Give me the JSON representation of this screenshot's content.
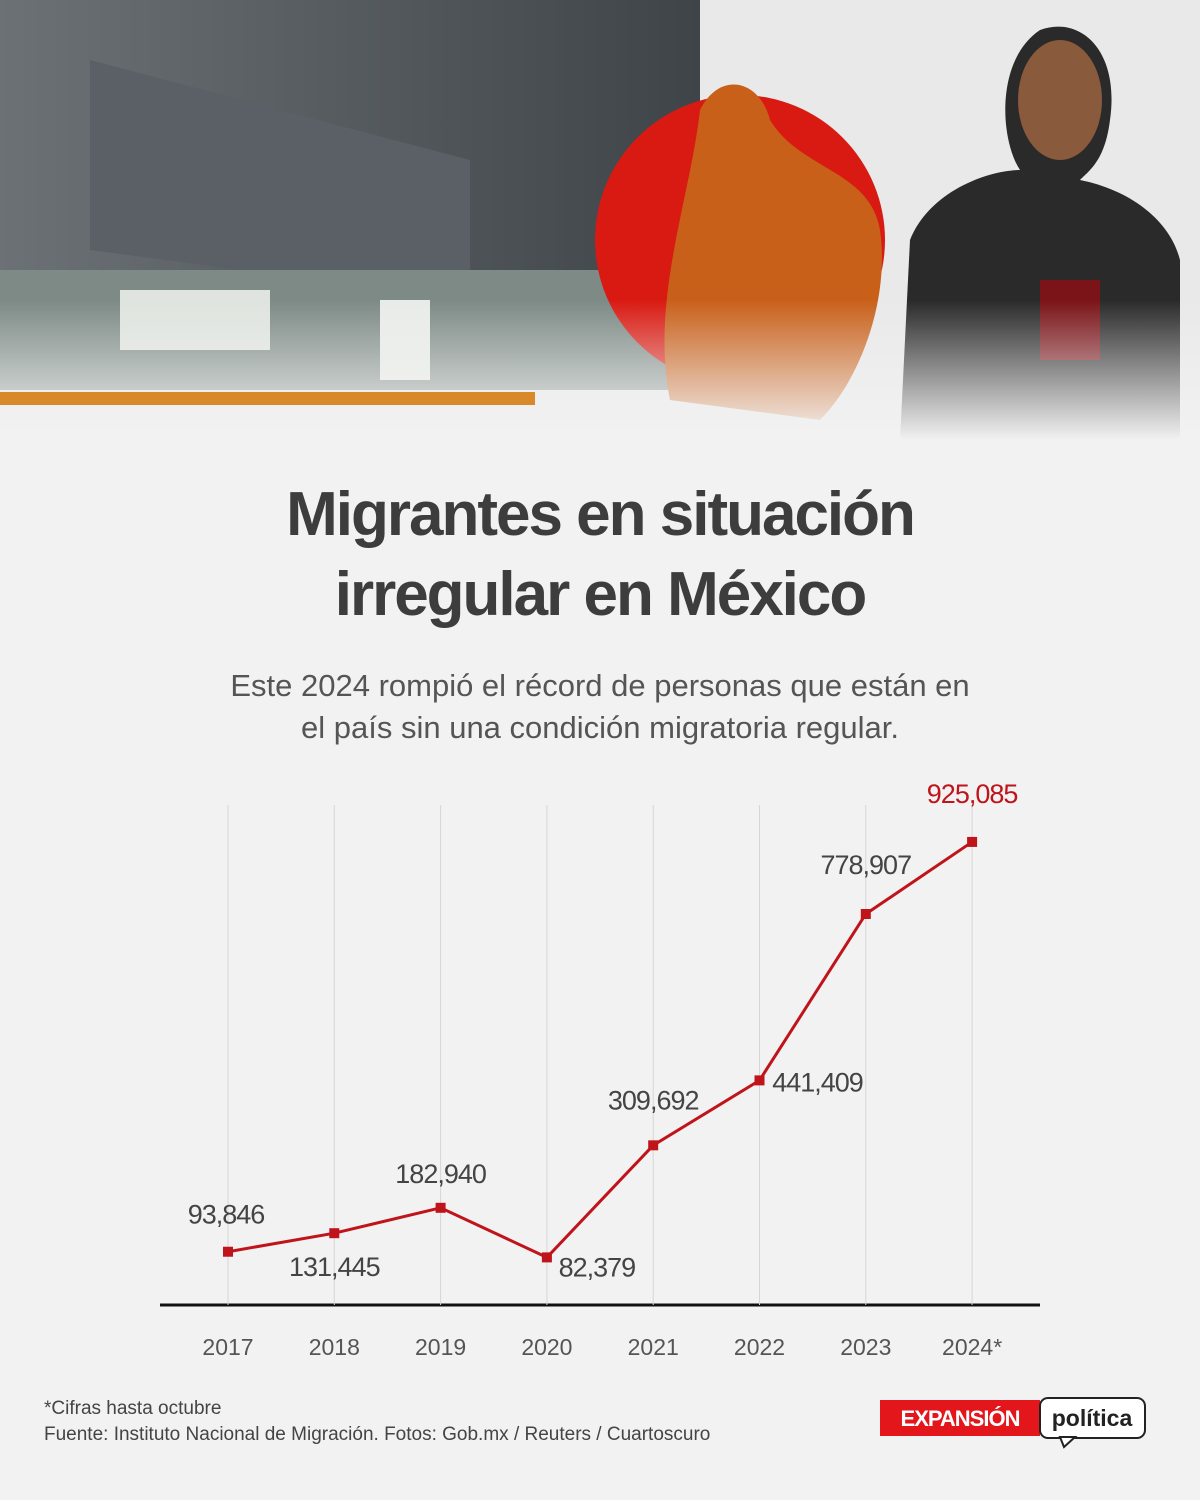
{
  "chart_data": {
    "type": "line",
    "title": "Migrantes en situación irregular en México",
    "subtitle": "Este 2024 rompió el récord de personas que están en el país sin una condición migratoria regular.",
    "categories": [
      "2017",
      "2018",
      "2019",
      "2020",
      "2021",
      "2022",
      "2023",
      "2024*"
    ],
    "series": [
      {
        "name": "Migrantes en situación irregular",
        "color": "#c0141b",
        "values": [
          93846,
          131445,
          182940,
          82379,
          309692,
          441409,
          778907,
          925085
        ],
        "value_labels": [
          "93,846",
          "131,445",
          "182,940",
          "82,379",
          "309,692",
          "441,409",
          "778,907",
          "925,085"
        ]
      }
    ],
    "highlight_color": "#c0141b",
    "ylim": [
      0,
      1000000
    ],
    "grid": true,
    "note": "*Cifras hasta octubre",
    "source": "Fuente: Instituto Nacional de Migración. Fotos: Gob.mx / Reuters / Cuartoscuro",
    "brand": [
      "EXPANSIÓN",
      "política"
    ]
  }
}
